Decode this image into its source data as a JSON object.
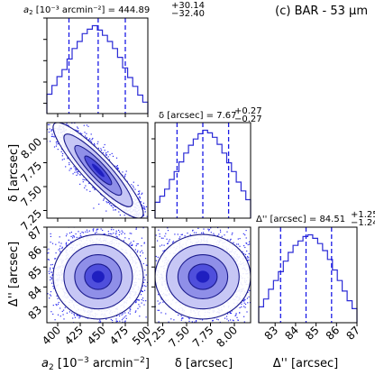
{
  "chart_data": {
    "type": "corner",
    "label": "(c) BAR - 53 μm",
    "parameters": [
      {
        "key": "a2",
        "axis_label_main": "a",
        "axis_label_sub": "2",
        "axis_label_rest": " [10",
        "axis_label_sup": "−3",
        "axis_label_tail": " arcmin",
        "axis_label_sup2": "−2",
        "axis_label_end": "]",
        "title_prefix": "a",
        "title_sub": "2",
        "title_units": " [10⁻³ arcmin⁻²] = ",
        "median": "444.89",
        "err_plus": "+30.14",
        "err_minus": "−32.40",
        "range": [
          388,
          500
        ],
        "ticks": [
          400,
          425,
          450,
          475,
          500
        ],
        "tick_labels": [
          "400",
          "425",
          "450",
          "475",
          "500"
        ],
        "quantiles": [
          412.5,
          444.89,
          475.0
        ],
        "histogram": [
          0.22,
          0.32,
          0.42,
          0.5,
          0.62,
          0.74,
          0.82,
          0.91,
          0.96,
          1.0,
          0.95,
          0.89,
          0.82,
          0.74,
          0.64,
          0.52,
          0.41,
          0.31,
          0.21,
          0.13
        ]
      },
      {
        "key": "delta",
        "axis_label": "δ [arcsec]",
        "title_prefix": "δ [arcsec] = ",
        "median": "7.67",
        "err_plus": "+0.27",
        "err_minus": "−0.27",
        "range": [
          7.17,
          8.17
        ],
        "ticks": [
          7.25,
          7.5,
          7.75,
          8.0
        ],
        "tick_labels": [
          "7.25",
          "7.50",
          "7.75",
          "8.00"
        ],
        "quantiles": [
          7.4,
          7.67,
          7.94
        ],
        "histogram": [
          0.18,
          0.25,
          0.33,
          0.44,
          0.53,
          0.64,
          0.74,
          0.83,
          0.9,
          0.96,
          1.0,
          0.97,
          0.92,
          0.84,
          0.74,
          0.63,
          0.53,
          0.41,
          0.31,
          0.21
        ]
      },
      {
        "key": "Delta2",
        "axis_label": "Δ'' [arcsec]",
        "title_prefix": "Δ'' [arcsec] = ",
        "median": "84.51",
        "err_plus": "+1.25",
        "err_minus": "−1.24",
        "range": [
          82.2,
          87
        ],
        "ticks": [
          83,
          84,
          85,
          86,
          87
        ],
        "tick_labels": [
          "83",
          "84",
          "85",
          "86",
          "87"
        ],
        "quantiles": [
          83.27,
          84.51,
          85.76
        ],
        "histogram": [
          0.18,
          0.27,
          0.38,
          0.48,
          0.58,
          0.7,
          0.8,
          0.88,
          0.93,
          0.98,
          1.0,
          0.96,
          0.9,
          0.82,
          0.72,
          0.6,
          0.48,
          0.36,
          0.25,
          0.16
        ]
      }
    ],
    "correlations": [
      {
        "x": "a2",
        "y": "delta",
        "rho": -0.9,
        "center": [
          444.89,
          7.67
        ],
        "sd": [
          20,
          0.2
        ]
      },
      {
        "x": "a2",
        "y": "Delta2",
        "rho": 0.0,
        "center": [
          444.89,
          84.51
        ],
        "sd": [
          20,
          0.85
        ]
      },
      {
        "x": "delta",
        "y": "Delta2",
        "rho": 0.0,
        "center": [
          7.67,
          84.51
        ],
        "sd": [
          0.2,
          0.85
        ]
      }
    ],
    "colors": {
      "histogram": "#2b2bd6",
      "quantile": "#1a1ae6",
      "points": "#2c2cf0",
      "contour": "#1a1a8c"
    }
  }
}
